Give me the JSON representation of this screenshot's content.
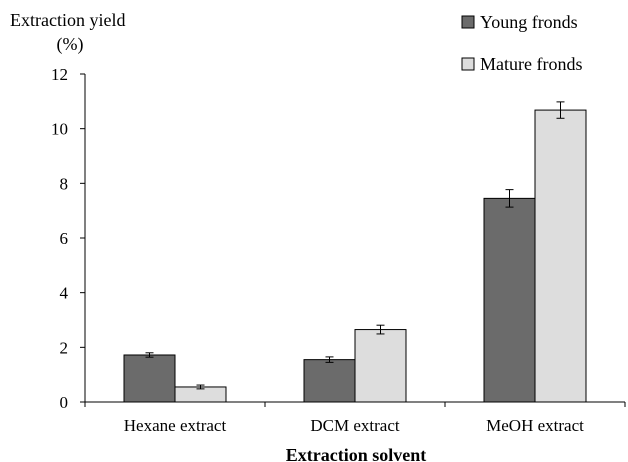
{
  "chart_data": {
    "type": "bar",
    "ylabel_line1": "Extraction yield",
    "ylabel_line2": "(%)",
    "xlabel": "Extraction solvent",
    "categories": [
      "Hexane extract",
      "DCM extract",
      "MeOH extract"
    ],
    "series": [
      {
        "name": "Young fronds",
        "color": "#6b6b6b",
        "values": [
          1.72,
          1.55,
          7.45
        ],
        "errors": [
          0.08,
          0.1,
          0.32
        ]
      },
      {
        "name": "Mature fronds",
        "color": "#dddddd",
        "values": [
          0.55,
          2.65,
          10.68
        ],
        "errors": [
          0.07,
          0.16,
          0.3
        ]
      }
    ],
    "ylim": [
      0,
      12
    ],
    "yticks": [
      "0",
      "2",
      "4",
      "6",
      "8",
      "10",
      "12"
    ],
    "grid": false,
    "legend_position": "top-right",
    "error_bars": true
  }
}
